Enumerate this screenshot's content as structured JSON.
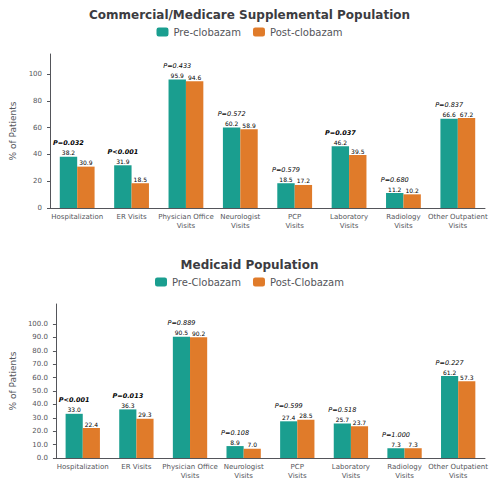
{
  "chart_data": [
    {
      "type": "bar",
      "title": "Commercial/Medicare Supplemental Population",
      "ylabel": "% of Patients",
      "categories": [
        "Hospitalization",
        "ER Visits",
        "Physician Office\nVisits",
        "Neurologist\nVisits",
        "PCP\nVisits",
        "Laboratory\nVisits",
        "Radiology\nVisits",
        "Other Outpatient\nVisits"
      ],
      "series": [
        {
          "name": "Pre-clobazam",
          "color": "#1a9e8f",
          "values": [
            38.2,
            31.9,
            95.9,
            60.2,
            18.5,
            46.2,
            11.2,
            66.6
          ]
        },
        {
          "name": "Post-clobazam",
          "color": "#e07b2a",
          "values": [
            30.9,
            18.5,
            94.6,
            58.9,
            17.2,
            39.5,
            10.2,
            67.2
          ]
        }
      ],
      "annotations": [
        {
          "text": "P=0.032",
          "bold": true
        },
        {
          "text": "P<0.001",
          "bold": true
        },
        {
          "text": "P=0.433",
          "bold": false
        },
        {
          "text": "P=0.572",
          "bold": false
        },
        {
          "text": "P=0.579",
          "bold": false
        },
        {
          "text": "P=0.037",
          "bold": true
        },
        {
          "text": "P=0.680",
          "bold": false
        },
        {
          "text": "P=0.837",
          "bold": false
        }
      ],
      "ylim": [
        0,
        115
      ],
      "yticks": [
        0,
        20,
        40,
        60,
        80,
        100
      ],
      "data_labels": true,
      "grid": false,
      "legend": "top"
    },
    {
      "type": "bar",
      "title": "Medicaid Population",
      "ylabel": "% of Patients",
      "categories": [
        "Hospitalization",
        "ER Visits",
        "Physician Office\nVisits",
        "Neurologist\nVisits",
        "PCP\nVisits",
        "Laboratory\nVisits",
        "Radiology\nVisits",
        "Other Outpatient\nVisits"
      ],
      "series": [
        {
          "name": "Pre-Clobazam",
          "color": "#1a9e8f",
          "values": [
            33.0,
            36.3,
            90.5,
            8.9,
            27.4,
            25.7,
            7.3,
            61.2
          ],
          "value_labels": [
            "33.0",
            "36.3",
            "90.5",
            "8.9",
            "27.4",
            "25.7",
            "7.3",
            "61.2"
          ]
        },
        {
          "name": "Post-Clobazam",
          "color": "#e07b2a",
          "values": [
            22.4,
            29.3,
            90.2,
            7.0,
            28.5,
            23.7,
            7.3,
            57.3
          ],
          "value_labels": [
            "22.4",
            "29.3",
            "90.2",
            "7.0",
            "28.5",
            "23.7",
            "7.3",
            "57.3"
          ]
        }
      ],
      "annotations": [
        {
          "text": "P<0.001",
          "bold": true
        },
        {
          "text": "P=0.013",
          "bold": true
        },
        {
          "text": "P=0.889",
          "bold": false
        },
        {
          "text": "P=0.108",
          "bold": false
        },
        {
          "text": "P=0.599",
          "bold": false
        },
        {
          "text": "P=0.518",
          "bold": false
        },
        {
          "text": "P=1.000",
          "bold": false
        },
        {
          "text": "P=0.227",
          "bold": false
        }
      ],
      "ylim": [
        0,
        115
      ],
      "yticks": [
        {
          "value": 0.0,
          "label": "0.0"
        },
        {
          "value": 10.0,
          "label": "10.0"
        },
        {
          "value": 20.0,
          "label": "20.0"
        },
        {
          "value": 30.0,
          "label": "30.0"
        },
        {
          "value": 40.0,
          "label": "40.0"
        },
        {
          "value": 50.0,
          "label": "50.0"
        },
        {
          "value": 60.0,
          "label": "60.0"
        },
        {
          "value": 70.0,
          "label": "70.0"
        },
        {
          "value": 80.0,
          "label": "80.0"
        },
        {
          "value": 90.0,
          "label": "90.0"
        },
        {
          "value": 100.0,
          "label": "100.0"
        }
      ],
      "data_labels": true,
      "grid": false,
      "legend": "top"
    }
  ]
}
